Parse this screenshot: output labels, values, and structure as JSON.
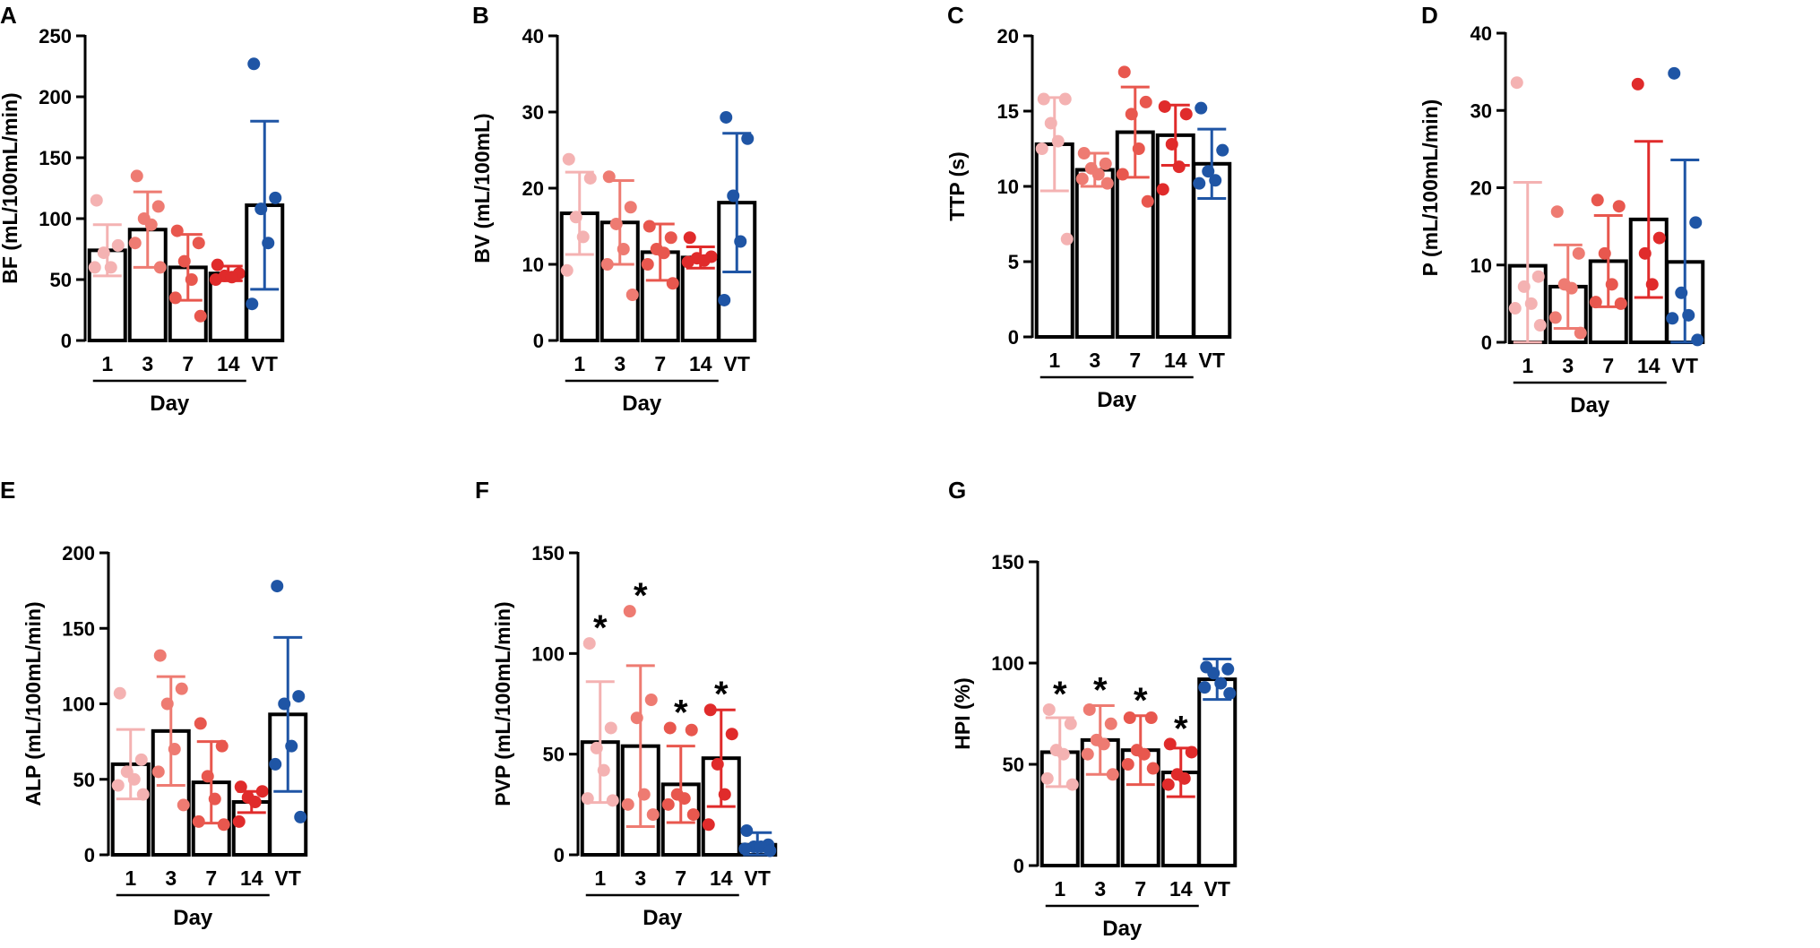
{
  "colors": {
    "day1": "#F4B2B2",
    "day3": "#EE7B72",
    "day7": "#E8574E",
    "day14": "#E02B2B",
    "vt": "#1F55A5",
    "bar_fill": "#ffffff",
    "bar_stroke": "#000000"
  },
  "chart_data": [
    {
      "panel": "A",
      "type": "bar",
      "categories": [
        "1",
        "3",
        "7",
        "14",
        "VT"
      ],
      "xlabel": "Day",
      "ylabel": "BF (mL/100mL/min)",
      "ylim": [
        0,
        250
      ],
      "yticks": [
        0,
        50,
        100,
        150,
        200,
        250
      ],
      "means": [
        74,
        91,
        60,
        55,
        111
      ],
      "sd": [
        21,
        31,
        27,
        6,
        69
      ],
      "points": [
        [
          115,
          78,
          72,
          60,
          60
        ],
        [
          135,
          110,
          100,
          95,
          80,
          60
        ],
        [
          90,
          80,
          65,
          50,
          35,
          20
        ],
        [
          62,
          55,
          53,
          52,
          50
        ],
        [
          227,
          117,
          108,
          80,
          30
        ]
      ],
      "significance": [
        "",
        "",
        "",
        "",
        ""
      ]
    },
    {
      "panel": "B",
      "type": "bar",
      "categories": [
        "1",
        "3",
        "7",
        "14",
        "VT"
      ],
      "xlabel": "Day",
      "ylabel": "BV (mL/100mL)",
      "ylim": [
        0,
        40
      ],
      "yticks": [
        0,
        10,
        20,
        30,
        40
      ],
      "means": [
        16.7,
        15.5,
        11.6,
        10.9,
        18.1
      ],
      "sd": [
        5.4,
        5.5,
        3.7,
        1.4,
        9.1
      ],
      "points": [
        [
          23.8,
          21.3,
          16.2,
          13.6,
          9.2
        ],
        [
          21.5,
          17.5,
          15.3,
          12.0,
          10.0,
          6.0
        ],
        [
          15.0,
          13.5,
          12.0,
          11.5,
          10.0,
          7.5
        ],
        [
          13.5,
          11.0,
          10.8,
          10.5,
          10.3
        ],
        [
          29.3,
          26.5,
          19.0,
          13.0,
          5.3
        ]
      ],
      "significance": [
        "",
        "",
        "",
        "",
        ""
      ]
    },
    {
      "panel": "C",
      "type": "bar",
      "categories": [
        "1",
        "3",
        "7",
        "14",
        "VT"
      ],
      "xlabel": "Day",
      "ylabel": "TTP (s)",
      "ylim": [
        0,
        20
      ],
      "yticks": [
        0,
        5,
        10,
        15,
        20
      ],
      "means": [
        12.8,
        11.1,
        13.6,
        13.4,
        11.5
      ],
      "sd": [
        3.1,
        1.1,
        3.0,
        2.0,
        2.3
      ],
      "points": [
        [
          15.8,
          15.8,
          14.2,
          13.0,
          12.5,
          6.5
        ],
        [
          12.2,
          11.5,
          11.2,
          10.8,
          10.5,
          10.2
        ],
        [
          17.6,
          15.6,
          14.8,
          12.5,
          10.8,
          9.0
        ],
        [
          15.3,
          14.8,
          12.8,
          11.3,
          9.8
        ],
        [
          15.2,
          12.4,
          11.0,
          10.4,
          10.2
        ]
      ],
      "significance": [
        "",
        "",
        "",
        "",
        ""
      ]
    },
    {
      "panel": "D",
      "type": "bar",
      "categories": [
        "1",
        "3",
        "7",
        "14",
        "VT"
      ],
      "xlabel": "Day",
      "ylabel": "P (mL/100mL/min)",
      "ylim": [
        0,
        40
      ],
      "yticks": [
        0,
        10,
        20,
        30,
        40
      ],
      "means": [
        9.9,
        7.2,
        10.5,
        15.9,
        10.4
      ],
      "sd": [
        10.8,
        5.4,
        5.9,
        10.1,
        13.2
      ],
      "points": [
        [
          33.6,
          8.5,
          7.2,
          5.0,
          4.4,
          2.2
        ],
        [
          16.9,
          11.5,
          7.5,
          7.0,
          3.2,
          1.2
        ],
        [
          18.4,
          17.6,
          11.5,
          7.5,
          5.2,
          5.0
        ],
        [
          33.4,
          13.5,
          11.5,
          7.5
        ],
        [
          34.8,
          15.5,
          6.4,
          3.5,
          3.1,
          0.3
        ]
      ],
      "significance": [
        "",
        "",
        "",
        "",
        ""
      ]
    },
    {
      "panel": "E",
      "type": "bar",
      "categories": [
        "1",
        "3",
        "7",
        "14",
        "VT"
      ],
      "xlabel": "Day",
      "ylabel": "ALP (mL/100mL/min)",
      "ylim": [
        0,
        200
      ],
      "yticks": [
        0,
        50,
        100,
        150,
        200
      ],
      "means": [
        60,
        82,
        48,
        35,
        93
      ],
      "sd": [
        23,
        36,
        27,
        7,
        51
      ],
      "points": [
        [
          107,
          63,
          55,
          50,
          46,
          40
        ],
        [
          132,
          110,
          100,
          70,
          55,
          33
        ],
        [
          87,
          72,
          52,
          37,
          22,
          20
        ],
        [
          45,
          42,
          38,
          35,
          22
        ],
        [
          178,
          105,
          100,
          72,
          60,
          25
        ]
      ],
      "significance": [
        "",
        "",
        "",
        "",
        ""
      ]
    },
    {
      "panel": "F",
      "type": "bar",
      "categories": [
        "1",
        "3",
        "7",
        "14",
        "VT"
      ],
      "xlabel": "Day",
      "ylabel": "PVP (mL/100mL/min)",
      "ylim": [
        0,
        150
      ],
      "yticks": [
        0,
        50,
        100,
        150
      ],
      "means": [
        56,
        54,
        35,
        48,
        5
      ],
      "sd": [
        30,
        40,
        19,
        24,
        6
      ],
      "points": [
        [
          105,
          63,
          53,
          42,
          28,
          27
        ],
        [
          121,
          77,
          68,
          30,
          25,
          20
        ],
        [
          63,
          62,
          30,
          28,
          25,
          20
        ],
        [
          72,
          60,
          45,
          30,
          15
        ],
        [
          12,
          5,
          4,
          4,
          3,
          2
        ]
      ],
      "significance": [
        "*",
        "*",
        "*",
        "*",
        ""
      ]
    },
    {
      "panel": "G",
      "type": "bar",
      "categories": [
        "1",
        "3",
        "7",
        "14",
        "VT"
      ],
      "xlabel": "Day",
      "ylabel": "HPI (%)",
      "ylim": [
        0,
        150
      ],
      "yticks": [
        0,
        50,
        100,
        150
      ],
      "means": [
        56,
        62,
        57,
        46,
        92
      ],
      "sd": [
        17,
        17,
        17,
        12,
        10
      ],
      "points": [
        [
          77,
          70,
          57,
          55,
          43,
          40
        ],
        [
          77,
          70,
          62,
          60,
          55,
          45
        ],
        [
          73,
          73,
          57,
          55,
          50,
          48
        ],
        [
          60,
          56,
          45,
          43,
          40
        ],
        [
          98,
          97,
          95,
          90,
          88,
          85
        ]
      ],
      "significance": [
        "*",
        "*",
        "*",
        "*",
        ""
      ]
    }
  ]
}
